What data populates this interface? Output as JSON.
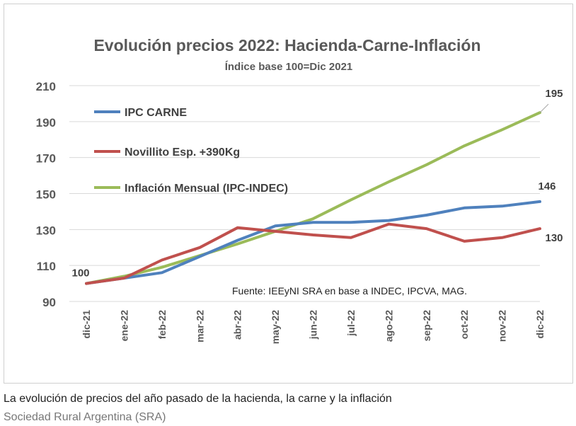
{
  "caption": "La evolución de precios del año pasado de la hacienda, la carne y la inflación",
  "credit": "Sociedad Rural Argentina (SRA)",
  "chart_data": {
    "type": "line",
    "title": "Evolución precios 2022: Hacienda-Carne-Inflación",
    "subtitle": "Índice base 100=Dic 2021",
    "source_note": "Fuente: IEEyNI SRA en base a INDEC, IPCVA, MAG.",
    "categories": [
      "dic-21",
      "ene-22",
      "feb-22",
      "mar-22",
      "abr-22",
      "may-22",
      "jun-22",
      "jul-22",
      "ago-22",
      "sep-22",
      "oct-22",
      "nov-22",
      "dic-22"
    ],
    "ylim": [
      90,
      210
    ],
    "yticks": [
      90,
      110,
      130,
      150,
      170,
      190,
      210
    ],
    "grid": true,
    "legend_position": "top-left",
    "series": [
      {
        "name": "IPC CARNE",
        "color": "#4f81bd",
        "values": [
          100,
          103,
          106,
          115,
          124,
          132,
          134,
          134,
          135,
          138,
          142,
          143,
          145.5
        ]
      },
      {
        "name": "Novillito Esp. +390Kg",
        "color": "#c0504d",
        "values": [
          100,
          103,
          113,
          120,
          131,
          129,
          127,
          125.5,
          133,
          130.5,
          123.5,
          125.5,
          130.5
        ]
      },
      {
        "name": "Inflación Mensual (IPC-INDEC)",
        "color": "#9bbb59",
        "values": [
          100,
          104,
          109,
          115.5,
          122,
          129,
          136,
          146.5,
          156.5,
          166,
          176.5,
          185.5,
          195
        ]
      }
    ],
    "annotations": [
      {
        "text": "100",
        "series": 0,
        "index": 0
      },
      {
        "text": "195",
        "series": 2,
        "index": 12
      },
      {
        "text": "146",
        "series": 0,
        "index": 12
      },
      {
        "text": "130",
        "series": 1,
        "index": 12
      }
    ]
  }
}
